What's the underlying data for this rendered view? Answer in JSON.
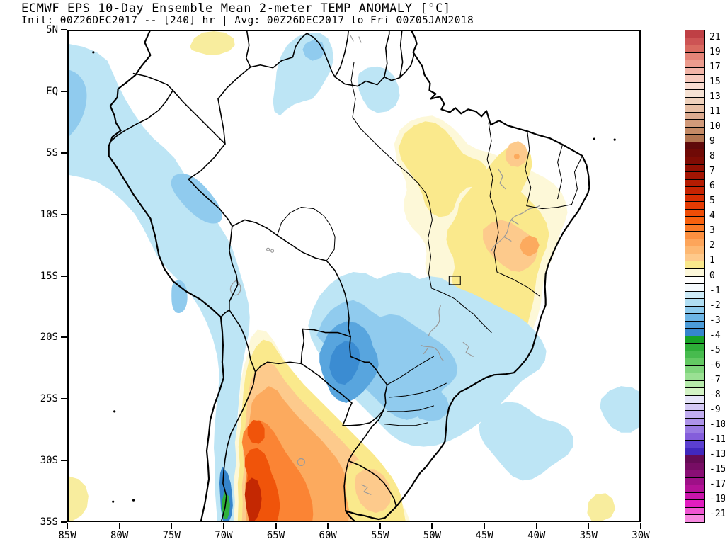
{
  "title": {
    "line1": "ECMWF EPS 10-Day Ensemble Mean 2-meter TEMP ANOMALY [°C]",
    "line2": "Init: 00Z26DEC2017 -- [240] hr | Avg: 00Z26DEC2017 to Fri 00Z05JAN2018"
  },
  "axes": {
    "lat": [
      "5N",
      "EQ",
      "5S",
      "10S",
      "15S",
      "20S",
      "25S",
      "30S",
      "35S"
    ],
    "lon": [
      "85W",
      "80W",
      "75W",
      "70W",
      "65W",
      "60W",
      "55W",
      "50W",
      "45W",
      "40W",
      "35W",
      "30W"
    ]
  },
  "colorbar": {
    "labels": [
      "21",
      "19",
      "17",
      "15",
      "13",
      "11",
      "10",
      "9",
      "8",
      "7",
      "6",
      "5",
      "4",
      "3",
      "2",
      "1",
      "0",
      "-1",
      "-2",
      "-3",
      "-4",
      "-5",
      "-6",
      "-7",
      "-8",
      "-9",
      "-10",
      "-11",
      "-13",
      "-15",
      "-17",
      "-19",
      "-21"
    ],
    "cells": [
      "#bf4045",
      "#cd5454",
      "#d96a60",
      "#e48478",
      "#ec9c8e",
      "#f2b5a8",
      "#f7cbbf",
      "#f9ddd2",
      "#f6e2d4",
      "#efd2bd",
      "#e7bfa5",
      "#dcab90",
      "#d19a7a",
      "#c48a66",
      "#b27551",
      "#5f0a0b",
      "#700a06",
      "#800c04",
      "#921003",
      "#a41503",
      "#b51c02",
      "#c62402",
      "#d72e02",
      "#e43b03",
      "#ef4d06",
      "#f8610e",
      "#fb7a26",
      "#fc9040",
      "#fda55a",
      "#fdb872",
      "#fec98b",
      "#fae88c",
      "#fdf8da",
      "#ffffff",
      "#f6fbfe",
      "#cdebf8",
      "#b0def3",
      "#8ecbee",
      "#6cb5e6",
      "#4c9cd9",
      "#3586cd",
      "#17a226",
      "#2eae38",
      "#47bb4e",
      "#63c963",
      "#7fd57c",
      "#9ae093",
      "#b6ebab",
      "#d3f3c5",
      "#e7e5fa",
      "#d4c9f5",
      "#c1adf0",
      "#ad93e9",
      "#997ae2",
      "#845edb",
      "#5b3fd0",
      "#4128bd",
      "#650b55",
      "#770d64",
      "#8a0e75",
      "#9e1087",
      "#b41297",
      "#ca15ab",
      "#e21dc0",
      "#f055d2",
      "#f788e0"
    ]
  },
  "palette": {
    "cool_light": "#bde5f5",
    "cool_medium": "#90cbee",
    "cool_deep": "#58a5de",
    "cool_deepest": "#3b8cd2",
    "warm_cream": "#fdf8d8",
    "warm_pale_yellow": "#f8ed9e",
    "warm_yellow": "#fae98c",
    "warm_light_orange": "#fdca8c",
    "warm_orange": "#fcaa5e",
    "warm_deep_orange": "#fb8434",
    "warm_red_orange": "#f0540a",
    "warm_red": "#e03a03",
    "warm_dark_red": "#c42802",
    "cold_strip_green": "#2fb13b",
    "cold_strip_blue": "#3584cb",
    "river_gray": "#9a9a9a"
  }
}
